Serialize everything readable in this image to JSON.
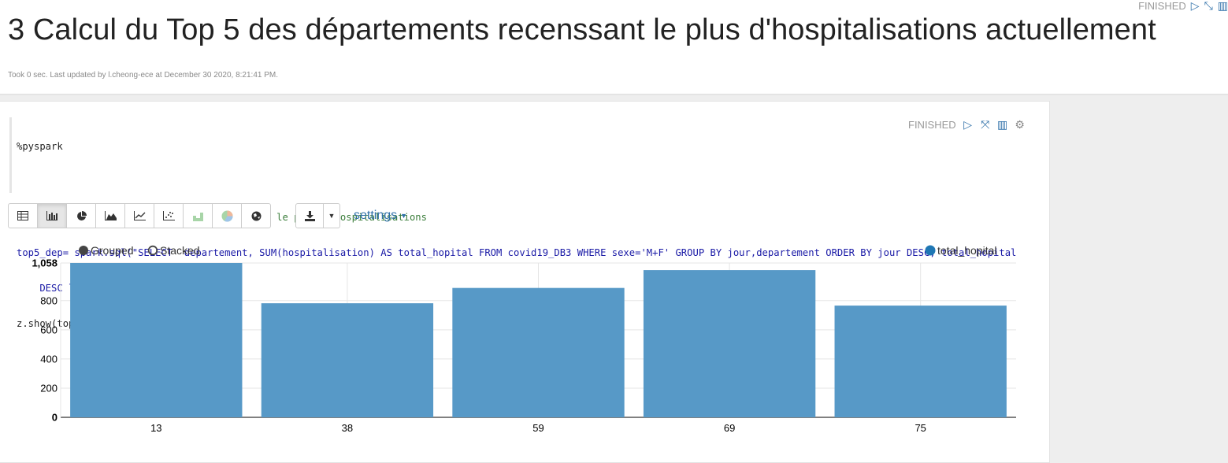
{
  "header": {
    "status": "FINISHED",
    "title": "3 Calcul du Top 5 des départements recenssant le plus d'hospitalisations actuellement",
    "meta": "Took 0 sec. Last updated by l.cheong-ece at December 30 2020, 8:21:41 PM."
  },
  "paragraph": {
    "status": "FINISHED",
    "code_lines": [
      "%pyspark",
      "",
      "#Calcul du Top 5 des départements recenssant le plus d'hospitalisations",
      "top5_dep= spark.sql(\"SELECT  departement, SUM(hospitalisation) AS total_hopital FROM covid19_DB3 WHERE sexe='M+F' GROUP BY jour,departement ORDER BY jour DESC, total_hopital",
      "    DESC limit 5\")",
      "z.show(top5_dep)"
    ]
  },
  "toolbar": {
    "buttons": [
      {
        "name": "table",
        "icon": "table-icon",
        "active": false
      },
      {
        "name": "bar",
        "icon": "bar-chart-icon",
        "active": true
      },
      {
        "name": "pie",
        "icon": "pie-chart-icon",
        "active": false
      },
      {
        "name": "area",
        "icon": "area-chart-icon",
        "active": false
      },
      {
        "name": "line",
        "icon": "line-chart-icon",
        "active": false
      },
      {
        "name": "scatter",
        "icon": "scatter-chart-icon",
        "active": false
      },
      {
        "name": "funnel",
        "icon": "funnel-chart-icon",
        "active": false
      },
      {
        "name": "pie-color",
        "icon": "colored-pie-icon",
        "active": false
      },
      {
        "name": "map",
        "icon": "globe-icon",
        "active": false
      }
    ],
    "settings_label": "settings"
  },
  "chart_legend": {
    "grouped": "Grouped",
    "stacked": "Stacked",
    "selected_mode": "Grouped"
  },
  "chart_data": {
    "type": "bar",
    "categories": [
      "13",
      "38",
      "59",
      "69",
      "75"
    ],
    "series": [
      {
        "name": "total_hopital",
        "values": [
          1058,
          782,
          887,
          1009,
          766
        ],
        "color": "#5799c7"
      }
    ],
    "ylim": [
      0,
      1058
    ],
    "y_ticks": [
      "0",
      "200",
      "400",
      "600",
      "800",
      "1,058"
    ],
    "grid": true,
    "legend_position": "top-right"
  }
}
